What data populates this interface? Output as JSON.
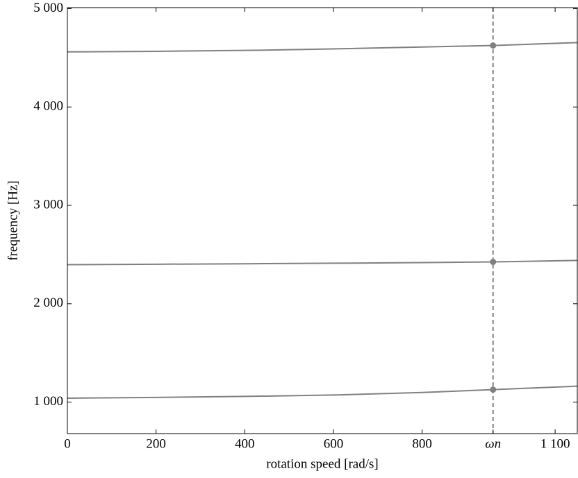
{
  "chart_data": {
    "type": "line",
    "x_label": "rotation speed [rad/s]",
    "y_label": "frequency [Hz]",
    "x": [
      0,
      200,
      400,
      600,
      800,
      960,
      1150
    ],
    "series": [
      {
        "color": "#808080",
        "values": [
          1040,
          1048,
          1058,
          1072,
          1098,
          1127,
          1162
        ]
      },
      {
        "color": "#808080",
        "values": [
          2397,
          2402,
          2406,
          2412,
          2418,
          2425,
          2440
        ]
      },
      {
        "color": "#808080",
        "values": [
          4560,
          4566,
          4575,
          4590,
          4610,
          4625,
          4655
        ]
      }
    ],
    "highlight_x": 960,
    "highlight_color": "#606060",
    "xlim": [
      0,
      1150
    ],
    "ylim": [
      680,
      5010
    ],
    "xticks": [
      0,
      200,
      400,
      600,
      800,
      {
        "value": 960,
        "label": "ωn"
      },
      {
        "value": 1100,
        "label": "1 100"
      }
    ],
    "yticks": [
      {
        "value": 1000,
        "label": "1 000"
      },
      {
        "value": 2000,
        "label": "2 000"
      },
      {
        "value": 3000,
        "label": "3 000"
      },
      {
        "value": 4000,
        "label": "4 000"
      },
      {
        "value": 5000,
        "label": "5 000"
      }
    ]
  }
}
